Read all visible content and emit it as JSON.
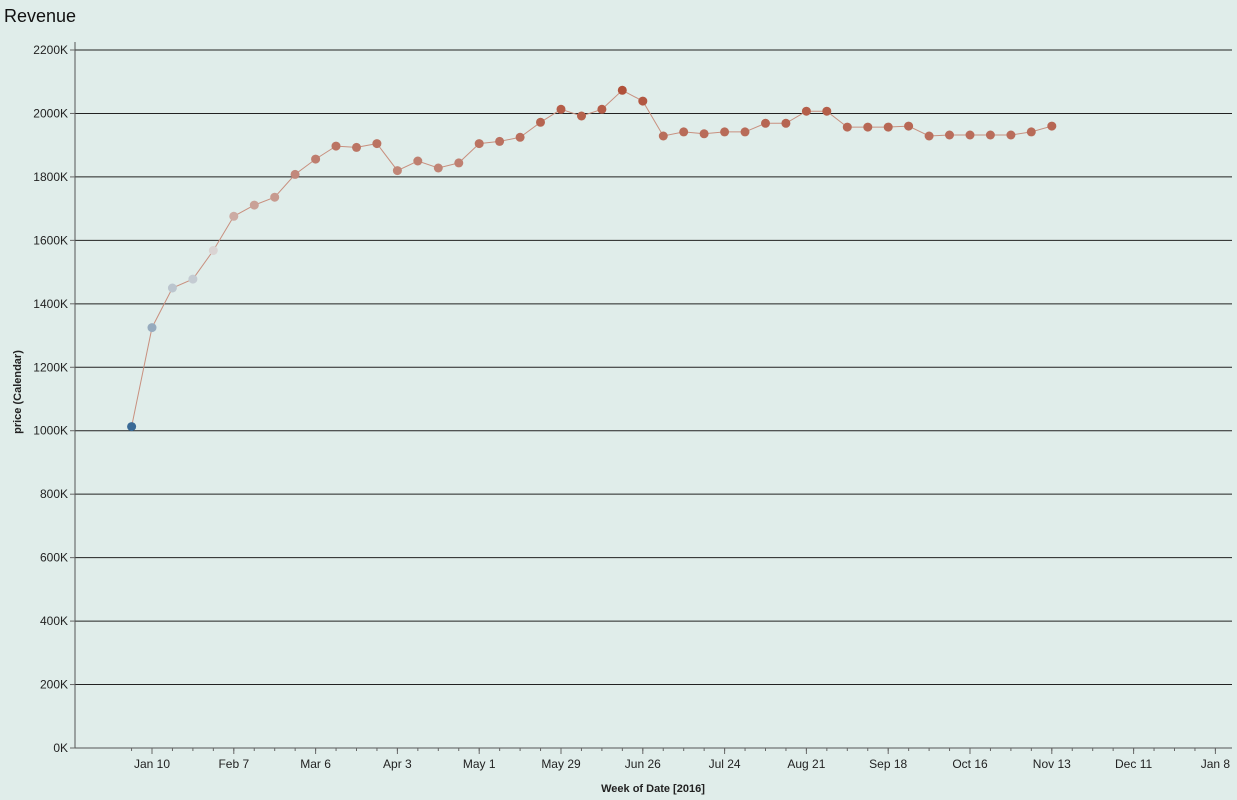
{
  "chart_data": {
    "type": "line",
    "title": "Revenue",
    "xlabel": "Week of Date [2016]",
    "ylabel": "price (Calendar)",
    "x_tick_labels": [
      "Jan 10",
      "Feb 7",
      "Mar 6",
      "Apr 3",
      "May 1",
      "May 29",
      "Jun 26",
      "Jul 24",
      "Aug 21",
      "Sep 18",
      "Oct 16",
      "Nov 13",
      "Dec 11",
      "Jan 8"
    ],
    "y_tick_labels": [
      "0K",
      "200K",
      "400K",
      "600K",
      "800K",
      "1000K",
      "1200K",
      "1400K",
      "1600K",
      "1800K",
      "2000K",
      "2200K"
    ],
    "ylim": [
      0,
      2200000
    ],
    "grid": true,
    "x": [
      "2016-01-03",
      "2016-01-10",
      "2016-01-17",
      "2016-01-24",
      "2016-01-31",
      "2016-02-07",
      "2016-02-14",
      "2016-02-21",
      "2016-02-28",
      "2016-03-06",
      "2016-03-13",
      "2016-03-20",
      "2016-03-27",
      "2016-04-03",
      "2016-04-10",
      "2016-04-17",
      "2016-04-24",
      "2016-05-01",
      "2016-05-08",
      "2016-05-15",
      "2016-05-22",
      "2016-05-29",
      "2016-06-05",
      "2016-06-12",
      "2016-06-19",
      "2016-06-26",
      "2016-07-03",
      "2016-07-10",
      "2016-07-17",
      "2016-07-24",
      "2016-07-31",
      "2016-08-07",
      "2016-08-14",
      "2016-08-21",
      "2016-08-28",
      "2016-09-04",
      "2016-09-11",
      "2016-09-18",
      "2016-09-25",
      "2016-10-02",
      "2016-10-09",
      "2016-10-16",
      "2016-10-23",
      "2016-10-30",
      "2016-11-06",
      "2016-11-13"
    ],
    "series": [
      {
        "values": [
          1013000,
          1325000,
          1450000,
          1478000,
          1568000,
          1676000,
          1711000,
          1736000,
          1808000,
          1856000,
          1897000,
          1893000,
          1905000,
          1820000,
          1850000,
          1828000,
          1844000,
          1905000,
          1912000,
          1925000,
          1972000,
          2013000,
          1992000,
          2013000,
          2073000,
          2039000,
          1929000,
          1942000,
          1936000,
          1942000,
          1942000,
          1969000,
          1969000,
          2007000,
          2007000,
          1957000,
          1957000,
          1957000,
          1960000,
          1929000,
          1932000,
          1932000,
          1932000,
          1932000,
          1942000,
          1960000
        ],
        "line_color": "#c8907f",
        "color_scale": {
          "low": "#3a6a96",
          "mid": "#dcdcdc",
          "high": "#b0513a"
        }
      }
    ]
  }
}
